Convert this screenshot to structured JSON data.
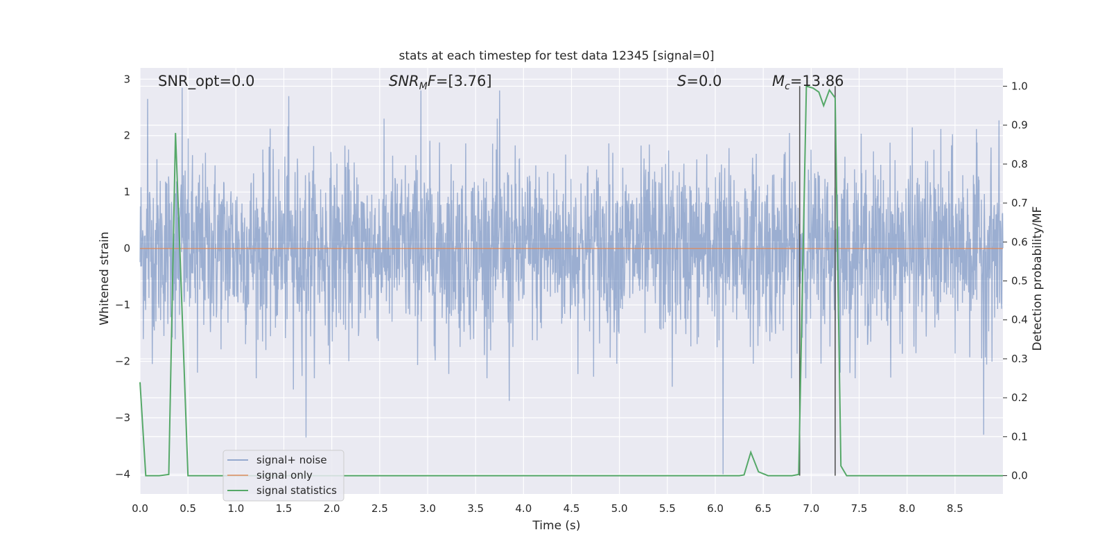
{
  "chart_data": {
    "type": "line",
    "title": "stats at each timestep for test data 12345 [signal=0]",
    "xlabel": "Time (s)",
    "ylabel": "Whitened strain",
    "y2label": "Detection probability/MF",
    "xlim": [
      0.0,
      9.0
    ],
    "ylim": [
      -4.35,
      3.2
    ],
    "y2lim": [
      -0.047,
      1.047
    ],
    "grid": true,
    "legend_position": "lower-left",
    "x_ticks": [
      "0.0",
      "0.5",
      "1.0",
      "1.5",
      "2.0",
      "2.5",
      "3.0",
      "3.5",
      "4.0",
      "4.5",
      "5.0",
      "5.5",
      "6.0",
      "6.5",
      "7.0",
      "7.5",
      "8.0",
      "8.5"
    ],
    "y_ticks": [
      "3",
      "2",
      "1",
      "0",
      "−1",
      "−2",
      "−3",
      "−4"
    ],
    "y2_ticks": [
      "1.0",
      "0.9",
      "0.8",
      "0.7",
      "0.6",
      "0.5",
      "0.4",
      "0.3",
      "0.2",
      "0.1",
      "0.0"
    ],
    "annotations": {
      "snr_opt": "SNR_opt=0.0",
      "snr_mf_main": "SNR",
      "snr_mf_sub": "M",
      "snr_mf_rest": "F=[3.76]",
      "s_main": "S",
      "s_rest": "=0.0",
      "mc_main": "M",
      "mc_sub": "c",
      "mc_rest": "=13.86"
    },
    "series": [
      {
        "name": "signal+ noise",
        "axis": "left",
        "color": "#4c72b0",
        "description_envelope": {
          "typical_range": [
            -2.0,
            2.0
          ],
          "notable_spikes": [
            {
              "x": 0.08,
              "y": 2.65
            },
            {
              "x": 0.44,
              "y": 2.85
            },
            {
              "x": 1.55,
              "y": 2.7
            },
            {
              "x": 2.93,
              "y": 2.8
            },
            {
              "x": 3.75,
              "y": 2.8
            },
            {
              "x": 1.73,
              "y": -3.35
            },
            {
              "x": 3.85,
              "y": -2.7
            },
            {
              "x": 6.08,
              "y": -4.0
            },
            {
              "x": 8.8,
              "y": -3.3
            },
            {
              "x": 0.6,
              "y": -2.2
            },
            {
              "x": 1.6,
              "y": -2.5
            },
            {
              "x": 5.55,
              "y": -2.45
            }
          ]
        }
      },
      {
        "name": "signal only",
        "axis": "left",
        "color": "#dd8452",
        "x": [
          0.0,
          9.0
        ],
        "y": [
          0.0,
          0.0
        ]
      },
      {
        "name": "signal statistics",
        "axis": "right",
        "color": "#55a868",
        "x": [
          0.0,
          0.06,
          0.1,
          0.2,
          0.3,
          0.37,
          0.42,
          0.5,
          0.55,
          1.0,
          2.0,
          3.0,
          4.0,
          5.0,
          6.0,
          6.25,
          6.3,
          6.37,
          6.45,
          6.55,
          6.8,
          6.87,
          6.95,
          7.02,
          7.08,
          7.13,
          7.19,
          7.25,
          7.31,
          7.37,
          7.45,
          8.0,
          9.0
        ],
        "y": [
          0.24,
          0.0,
          0.0,
          0.0,
          0.003,
          0.88,
          0.55,
          0.0,
          0.0,
          0.0,
          0.0,
          0.0,
          0.0,
          0.0,
          0.0,
          0.0,
          0.002,
          0.06,
          0.01,
          0.0,
          0.0,
          0.003,
          1.0,
          0.995,
          0.985,
          0.95,
          0.99,
          0.97,
          0.025,
          0.0,
          0.0,
          0.0,
          0.0
        ]
      }
    ],
    "vertical_lines": [
      {
        "x": 6.88,
        "y_from": 0.0,
        "y_to": 1.0,
        "color": "#555555"
      },
      {
        "x": 7.25,
        "y_from": 0.0,
        "y_to": 1.0,
        "color": "#555555"
      }
    ]
  },
  "legend": {
    "items": [
      {
        "label": "signal+ noise",
        "color": "#4c72b0"
      },
      {
        "label": "signal only",
        "color": "#dd8452"
      },
      {
        "label": "signal statistics",
        "color": "#55a868"
      }
    ]
  },
  "colors": {
    "plot_background": "#eaeaf2",
    "grid": "#ffffff"
  }
}
